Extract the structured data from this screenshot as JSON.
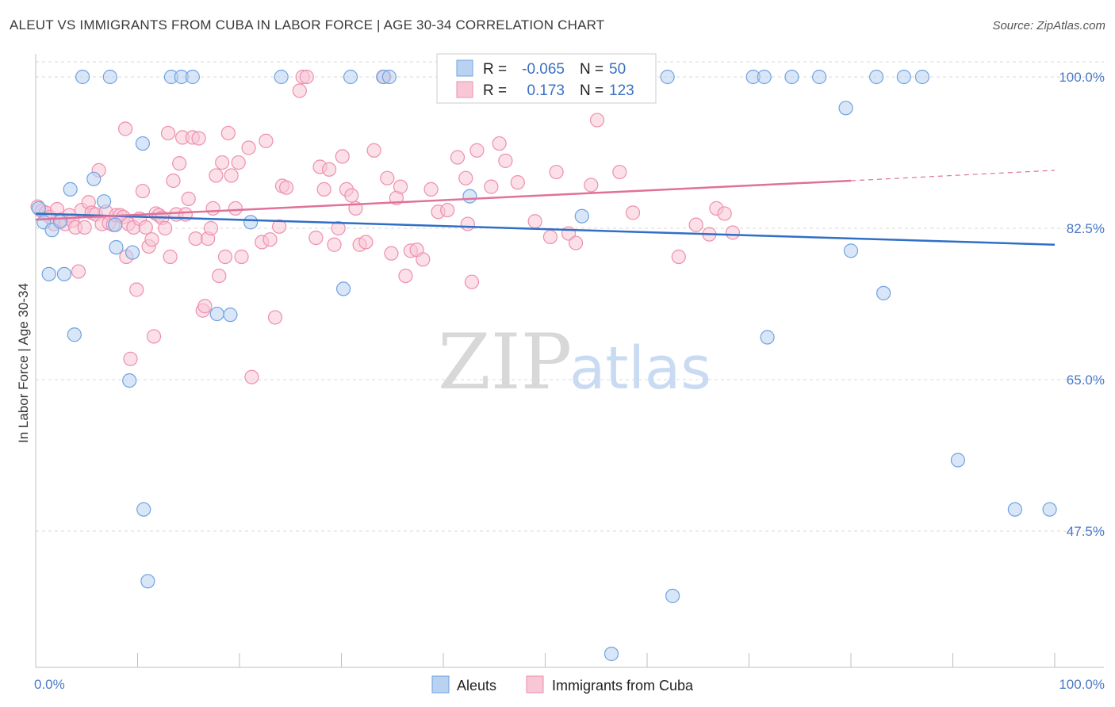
{
  "title": "ALEUT VS IMMIGRANTS FROM CUBA IN LABOR FORCE | AGE 30-34 CORRELATION CHART",
  "source": "Source: ZipAtlas.com",
  "watermark": {
    "zip": "ZIP",
    "atlas": "atlas"
  },
  "legend_top": {
    "rows": [
      {
        "r_label": "R =",
        "r_value": "-0.065",
        "n_label": "N =",
        "n_value": "50"
      },
      {
        "r_label": "R =",
        "r_value": "0.173",
        "n_label": "N =",
        "n_value": "123"
      }
    ]
  },
  "chart_data": {
    "type": "scatter",
    "title": "ALEUT VS IMMIGRANTS FROM CUBA IN LABOR FORCE | AGE 30-34 CORRELATION CHART",
    "xlabel": "",
    "ylabel": "In Labor Force | Age 30-34",
    "xlim": [
      0,
      100
    ],
    "ylim": [
      30,
      101
    ],
    "x_tick_labels": [
      "0.0%",
      "100.0%"
    ],
    "y_ticks": [
      100.0,
      82.5,
      65.0,
      47.5
    ],
    "y_tick_labels": [
      "100.0%",
      "82.5%",
      "65.0%",
      "47.5%"
    ],
    "grid": true,
    "legend_position": "bottom",
    "series": [
      {
        "name": "Aleuts",
        "color": "#6fa3e0",
        "fill": "#b9d2f2",
        "trend": {
          "x": [
            0,
            100
          ],
          "y": [
            84.2,
            80.6
          ]
        },
        "points": [
          [
            0.3,
            84.8
          ],
          [
            0.8,
            83.2
          ],
          [
            1.3,
            77.2
          ],
          [
            1.6,
            82.3
          ],
          [
            2.4,
            83.3
          ],
          [
            2.8,
            77.2
          ],
          [
            3.4,
            87.0
          ],
          [
            3.8,
            70.2
          ],
          [
            4.6,
            100
          ],
          [
            5.7,
            88.2
          ],
          [
            6.7,
            85.6
          ],
          [
            7.3,
            100
          ],
          [
            7.8,
            82.9
          ],
          [
            7.9,
            80.3
          ],
          [
            9.2,
            64.9
          ],
          [
            9.5,
            79.7
          ],
          [
            10.5,
            92.3
          ],
          [
            10.6,
            50.0
          ],
          [
            11.0,
            41.7
          ],
          [
            13.3,
            100
          ],
          [
            14.3,
            100
          ],
          [
            15.4,
            100
          ],
          [
            17.8,
            72.6
          ],
          [
            19.1,
            72.5
          ],
          [
            21.1,
            83.2
          ],
          [
            24.1,
            100
          ],
          [
            30.2,
            75.5
          ],
          [
            30.9,
            100
          ],
          [
            34.1,
            100
          ],
          [
            34.7,
            100
          ],
          [
            42.6,
            86.2
          ],
          [
            47.3,
            100
          ],
          [
            53.6,
            83.9
          ],
          [
            56.5,
            33.3
          ],
          [
            62.0,
            100
          ],
          [
            62.5,
            40.0
          ],
          [
            70.4,
            100
          ],
          [
            71.5,
            100
          ],
          [
            71.8,
            69.9
          ],
          [
            74.2,
            100
          ],
          [
            76.9,
            100
          ],
          [
            79.5,
            96.4
          ],
          [
            80.0,
            79.9
          ],
          [
            82.5,
            100
          ],
          [
            83.2,
            75.0
          ],
          [
            85.2,
            100
          ],
          [
            87.0,
            100
          ],
          [
            90.5,
            55.7
          ],
          [
            96.1,
            50.0
          ],
          [
            99.5,
            50.0
          ]
        ]
      },
      {
        "name": "Immigrants from Cuba",
        "color": "#ee8fae",
        "fill": "#f7c7d6",
        "trend": {
          "x": [
            0,
            80
          ],
          "y": [
            83.5,
            88.0
          ]
        },
        "trend_dashed": {
          "x": [
            80,
            100
          ],
          "y": [
            88.0,
            89.2
          ]
        },
        "points": [
          [
            0.2,
            85.0
          ],
          [
            0.6,
            84.5
          ],
          [
            1.0,
            84.3
          ],
          [
            1.4,
            83.8
          ],
          [
            1.8,
            83.0
          ],
          [
            2.1,
            84.7
          ],
          [
            2.5,
            83.5
          ],
          [
            2.9,
            83.0
          ],
          [
            3.3,
            84.0
          ],
          [
            3.6,
            83.4
          ],
          [
            3.9,
            82.6
          ],
          [
            4.2,
            77.5
          ],
          [
            4.5,
            84.6
          ],
          [
            4.8,
            82.6
          ],
          [
            5.2,
            85.5
          ],
          [
            5.5,
            84.3
          ],
          [
            5.9,
            84.1
          ],
          [
            6.2,
            89.2
          ],
          [
            6.5,
            83.0
          ],
          [
            6.9,
            84.4
          ],
          [
            7.2,
            83.1
          ],
          [
            7.6,
            82.9
          ],
          [
            7.9,
            84.0
          ],
          [
            8.3,
            84.0
          ],
          [
            8.6,
            83.8
          ],
          [
            8.8,
            94.0
          ],
          [
            8.9,
            79.2
          ],
          [
            9.1,
            83.0
          ],
          [
            9.3,
            67.4
          ],
          [
            9.6,
            82.6
          ],
          [
            9.9,
            75.4
          ],
          [
            10.2,
            83.6
          ],
          [
            10.5,
            86.8
          ],
          [
            10.8,
            82.6
          ],
          [
            11.1,
            80.4
          ],
          [
            11.4,
            81.2
          ],
          [
            11.6,
            70.0
          ],
          [
            11.8,
            84.2
          ],
          [
            12.1,
            84.0
          ],
          [
            12.4,
            83.7
          ],
          [
            12.7,
            82.5
          ],
          [
            13.0,
            93.5
          ],
          [
            13.2,
            79.2
          ],
          [
            13.5,
            88.0
          ],
          [
            13.8,
            84.1
          ],
          [
            14.1,
            90.0
          ],
          [
            14.4,
            93.0
          ],
          [
            14.7,
            84.1
          ],
          [
            15.0,
            85.9
          ],
          [
            15.4,
            93.0
          ],
          [
            15.7,
            81.3
          ],
          [
            16.0,
            92.9
          ],
          [
            16.4,
            73.0
          ],
          [
            16.6,
            73.5
          ],
          [
            16.9,
            81.3
          ],
          [
            17.2,
            82.5
          ],
          [
            17.4,
            84.8
          ],
          [
            17.7,
            88.6
          ],
          [
            18.0,
            77.0
          ],
          [
            18.3,
            90.1
          ],
          [
            18.6,
            79.2
          ],
          [
            18.9,
            93.5
          ],
          [
            19.2,
            88.6
          ],
          [
            19.6,
            84.8
          ],
          [
            19.9,
            90.1
          ],
          [
            20.2,
            79.2
          ],
          [
            20.9,
            91.8
          ],
          [
            21.2,
            65.3
          ],
          [
            22.2,
            80.9
          ],
          [
            22.6,
            92.6
          ],
          [
            23.0,
            81.2
          ],
          [
            23.5,
            72.2
          ],
          [
            23.9,
            82.7
          ],
          [
            24.2,
            87.4
          ],
          [
            24.6,
            87.2
          ],
          [
            25.9,
            98.4
          ],
          [
            26.2,
            100
          ],
          [
            26.6,
            100
          ],
          [
            27.5,
            81.4
          ],
          [
            27.9,
            89.6
          ],
          [
            28.3,
            87.0
          ],
          [
            28.8,
            89.3
          ],
          [
            29.3,
            80.6
          ],
          [
            29.7,
            82.5
          ],
          [
            30.1,
            90.8
          ],
          [
            30.5,
            87.0
          ],
          [
            31.0,
            86.3
          ],
          [
            31.4,
            84.8
          ],
          [
            31.8,
            80.6
          ],
          [
            32.4,
            80.9
          ],
          [
            33.2,
            91.5
          ],
          [
            34.2,
            100
          ],
          [
            34.5,
            88.3
          ],
          [
            34.9,
            79.6
          ],
          [
            35.4,
            86.0
          ],
          [
            35.8,
            87.3
          ],
          [
            36.3,
            77.0
          ],
          [
            36.8,
            79.9
          ],
          [
            37.4,
            80.0
          ],
          [
            38.0,
            78.9
          ],
          [
            38.8,
            87.0
          ],
          [
            39.5,
            84.4
          ],
          [
            40.4,
            84.6
          ],
          [
            41.4,
            90.7
          ],
          [
            42.2,
            88.3
          ],
          [
            42.4,
            83.0
          ],
          [
            42.8,
            76.3
          ],
          [
            43.3,
            91.5
          ],
          [
            44.7,
            87.3
          ],
          [
            45.5,
            92.3
          ],
          [
            46.1,
            90.3
          ],
          [
            47.3,
            87.8
          ],
          [
            49.0,
            83.3
          ],
          [
            50.5,
            81.5
          ],
          [
            51.1,
            89.0
          ],
          [
            52.3,
            81.9
          ],
          [
            53.0,
            80.8
          ],
          [
            54.5,
            87.5
          ],
          [
            55.1,
            95.0
          ],
          [
            57.3,
            89.0
          ],
          [
            58.6,
            84.3
          ],
          [
            63.1,
            79.2
          ],
          [
            64.8,
            82.9
          ],
          [
            66.1,
            81.8
          ],
          [
            66.8,
            84.8
          ],
          [
            67.6,
            84.2
          ],
          [
            68.4,
            82.0
          ]
        ]
      }
    ]
  }
}
